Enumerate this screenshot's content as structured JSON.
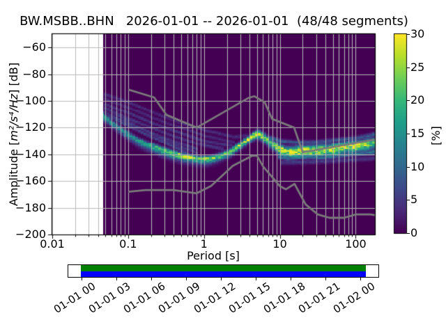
{
  "title": "BW.MSBB..BHN   2026-01-01 -- 2026-01-01  (48/48 segments)",
  "axes": {
    "xlabel": "Period [s]",
    "ylabel_prefix": "Amplitude [",
    "ylabel_math": "m²/s⁴/Hz",
    "ylabel_suffix": "] [dB]",
    "x_tick_labels": [
      "0.01",
      "0.1",
      "1",
      "10",
      "100"
    ],
    "x_tick_values": [
      0.01,
      0.1,
      1,
      10,
      100
    ],
    "y_tick_labels": [
      "−60",
      "−80",
      "−100",
      "−120",
      "−140",
      "−160",
      "−180",
      "−200"
    ],
    "y_tick_values": [
      -60,
      -80,
      -100,
      -120,
      -140,
      -160,
      -180,
      -200
    ],
    "xlim": [
      0.01,
      179
    ],
    "ylim": [
      -200,
      -50
    ],
    "x_scale": "log",
    "grid": "on"
  },
  "colorbar": {
    "label": "[%]",
    "tick_labels": [
      "0",
      "5",
      "10",
      "15",
      "20",
      "25",
      "30"
    ],
    "tick_values": [
      0,
      5,
      10,
      15,
      20,
      25,
      30
    ],
    "min": 0,
    "max": 30
  },
  "colors": {
    "background": "#ffffff",
    "histogram_zero": "#440154",
    "grid": "#b9b9b9",
    "noise_model": "#7a7a7a",
    "spine": "#000000",
    "coverage_green": "#008000",
    "coverage_blue": "#0000ff"
  },
  "viridis_stops": [
    "#440154",
    "#482878",
    "#3e4989",
    "#31688e",
    "#26828e",
    "#1f9e89",
    "#35b779",
    "#6ece58",
    "#b5de2b",
    "#fde725"
  ],
  "chart_data": {
    "type": "heatmap",
    "title": "BW.MSBB..BHN   2026-01-01 -- 2026-01-01  (48/48 segments)",
    "xlabel": "Period [s]",
    "ylabel": "Amplitude [m²/s⁴/Hz] [dB]",
    "x_scale": "log",
    "xlim": [
      0.01,
      179
    ],
    "ylim": [
      -200,
      -50
    ],
    "colorbar_range_percent": [
      0,
      30
    ],
    "histogram": {
      "data_start_period_s": 0.047,
      "period_bin_octaves": 0.125,
      "db_bin_width": 1,
      "mode_ridge_db": [
        [
          0.047,
          -111
        ],
        [
          0.06,
          -116
        ],
        [
          0.08,
          -121
        ],
        [
          0.1,
          -125
        ],
        [
          0.13,
          -129
        ],
        [
          0.17,
          -132
        ],
        [
          0.22,
          -134
        ],
        [
          0.3,
          -137
        ],
        [
          0.4,
          -139
        ],
        [
          0.55,
          -141
        ],
        [
          0.7,
          -142
        ],
        [
          0.9,
          -143
        ],
        [
          1.2,
          -143
        ],
        [
          1.6,
          -141
        ],
        [
          2.2,
          -138
        ],
        [
          3,
          -133
        ],
        [
          4,
          -128
        ],
        [
          4.8,
          -125
        ],
        [
          5.5,
          -125
        ],
        [
          6.5,
          -128
        ],
        [
          8,
          -132
        ],
        [
          10,
          -136
        ],
        [
          12,
          -138
        ],
        [
          15,
          -138
        ],
        [
          20,
          -137
        ],
        [
          30,
          -137
        ],
        [
          50,
          -136
        ],
        [
          80,
          -134
        ],
        [
          120,
          -133
        ],
        [
          179,
          -131
        ]
      ],
      "mode_peak_percent": [
        [
          0.047,
          16
        ],
        [
          0.07,
          13
        ],
        [
          0.1,
          14
        ],
        [
          0.15,
          16
        ],
        [
          0.22,
          18
        ],
        [
          0.35,
          21
        ],
        [
          0.55,
          24
        ],
        [
          0.8,
          26
        ],
        [
          1.2,
          24
        ],
        [
          1.8,
          20
        ],
        [
          2.5,
          22
        ],
        [
          3.5,
          26
        ],
        [
          4.5,
          30
        ],
        [
          5.5,
          30
        ],
        [
          6.5,
          26
        ],
        [
          8,
          22
        ],
        [
          10,
          28
        ],
        [
          13,
          26
        ],
        [
          17,
          29
        ],
        [
          22,
          27
        ],
        [
          30,
          29
        ],
        [
          40,
          26
        ],
        [
          55,
          29
        ],
        [
          75,
          25
        ],
        [
          100,
          28
        ],
        [
          140,
          24
        ],
        [
          179,
          20
        ]
      ],
      "spread_db_above": [
        [
          0.047,
          1.6
        ],
        [
          0.3,
          1.3
        ],
        [
          1,
          1.2
        ],
        [
          3,
          1.5
        ],
        [
          5,
          1.6
        ],
        [
          10,
          2.2
        ],
        [
          30,
          2.4
        ],
        [
          179,
          2.6
        ]
      ],
      "spread_db_below": [
        [
          0.047,
          2.2
        ],
        [
          0.2,
          2.8
        ],
        [
          0.5,
          3.0
        ],
        [
          1.5,
          2.6
        ],
        [
          4,
          1.8
        ],
        [
          8,
          2.6
        ],
        [
          15,
          3.2
        ],
        [
          179,
          3.4
        ]
      ],
      "high_noise_traces": [
        {
          "points": [
            [
              0.047,
              -95
            ],
            [
              0.1,
              -101
            ],
            [
              0.3,
              -112
            ],
            [
              1,
              -122
            ],
            [
              2.5,
              -127
            ],
            [
              4,
              -126
            ]
          ],
          "percent": 3.5,
          "sigma": 0.9
        },
        {
          "points": [
            [
              0.047,
              -98
            ],
            [
              0.1,
              -105
            ],
            [
              0.3,
              -116
            ],
            [
              1,
              -126
            ],
            [
              2.5,
              -131
            ]
          ],
          "percent": 3.5,
          "sigma": 0.9
        },
        {
          "points": [
            [
              0.047,
              -102
            ],
            [
              0.1,
              -109
            ],
            [
              0.3,
              -120
            ],
            [
              1,
              -130
            ],
            [
              2.5,
              -134
            ]
          ],
          "percent": 4.5,
          "sigma": 0.9
        },
        {
          "points": [
            [
              0.047,
              -105
            ],
            [
              0.1,
              -113
            ],
            [
              0.3,
              -124
            ],
            [
              0.8,
              -132
            ],
            [
              1.8,
              -136
            ]
          ],
          "percent": 4.5,
          "sigma": 0.9
        },
        {
          "points": [
            [
              0.047,
              -108
            ],
            [
              0.1,
              -117
            ],
            [
              0.3,
              -128
            ],
            [
              0.8,
              -136
            ]
          ],
          "percent": 5.5,
          "sigma": 0.9
        },
        {
          "points": [
            [
              0.055,
              -111
            ],
            [
              0.12,
              -121
            ],
            [
              0.3,
              -131
            ],
            [
              0.6,
              -139
            ]
          ],
          "percent": 6,
          "sigma": 0.9
        },
        {
          "points": [
            [
              0.047,
              -104
            ],
            [
              0.08,
              -112
            ],
            [
              0.15,
              -121
            ],
            [
              0.35,
              -131
            ],
            [
              0.8,
              -139
            ]
          ],
          "percent": 5,
          "sigma": 0.9
        }
      ],
      "long_period_bands": [
        {
          "points": [
            [
              7,
              -127
            ],
            [
              10,
              -130
            ],
            [
              15,
              -131
            ],
            [
              30,
              -131
            ],
            [
              60,
              -129
            ],
            [
              100,
              -128
            ],
            [
              179,
              -125
            ]
          ],
          "percent": 8,
          "sigma": 1.1
        },
        {
          "points": [
            [
              9,
              -141
            ],
            [
              13,
              -143
            ],
            [
              20,
              -142
            ],
            [
              40,
              -142
            ],
            [
              80,
              -140
            ],
            [
              179,
              -138
            ]
          ],
          "percent": 11,
          "sigma": 1.4
        },
        {
          "points": [
            [
              10,
              -146
            ],
            [
              20,
              -146
            ],
            [
              50,
              -145
            ],
            [
              179,
              -143
            ]
          ],
          "percent": 5,
          "sigma": 1.2
        }
      ]
    },
    "noise_model_lines": {
      "nhnm": [
        [
          0.1,
          -91.5
        ],
        [
          0.22,
          -97.4
        ],
        [
          0.32,
          -110.5
        ],
        [
          0.8,
          -120.0
        ],
        [
          3.8,
          -98.0
        ],
        [
          4.6,
          -96.5
        ],
        [
          6.3,
          -101.0
        ],
        [
          7.9,
          -113.5
        ],
        [
          15.4,
          -120.0
        ],
        [
          20.0,
          -138.5
        ],
        [
          354.8,
          -126.0
        ]
      ],
      "nlnm": [
        [
          0.1,
          -168.0
        ],
        [
          0.17,
          -166.7
        ],
        [
          0.4,
          -166.7
        ],
        [
          0.8,
          -169.2
        ],
        [
          1.24,
          -163.7
        ],
        [
          2.4,
          -148.6
        ],
        [
          4.3,
          -141.1
        ],
        [
          5.0,
          -141.1
        ],
        [
          6.0,
          -149.0
        ],
        [
          10.0,
          -163.8
        ],
        [
          12.0,
          -166.2
        ],
        [
          15.6,
          -162.1
        ],
        [
          21.9,
          -177.5
        ],
        [
          31.6,
          -185.0
        ],
        [
          45.0,
          -187.5
        ],
        [
          70.0,
          -187.5
        ],
        [
          101.0,
          -185.0
        ],
        [
          154.0,
          -185.0
        ],
        [
          328.0,
          -187.5
        ]
      ]
    }
  },
  "timeline": {
    "tick_labels": [
      "01-01 00",
      "01-01 03",
      "01-01 06",
      "01-01 09",
      "01-01 12",
      "01-01 15",
      "01-01 18",
      "01-01 21",
      "01-02 00"
    ]
  }
}
